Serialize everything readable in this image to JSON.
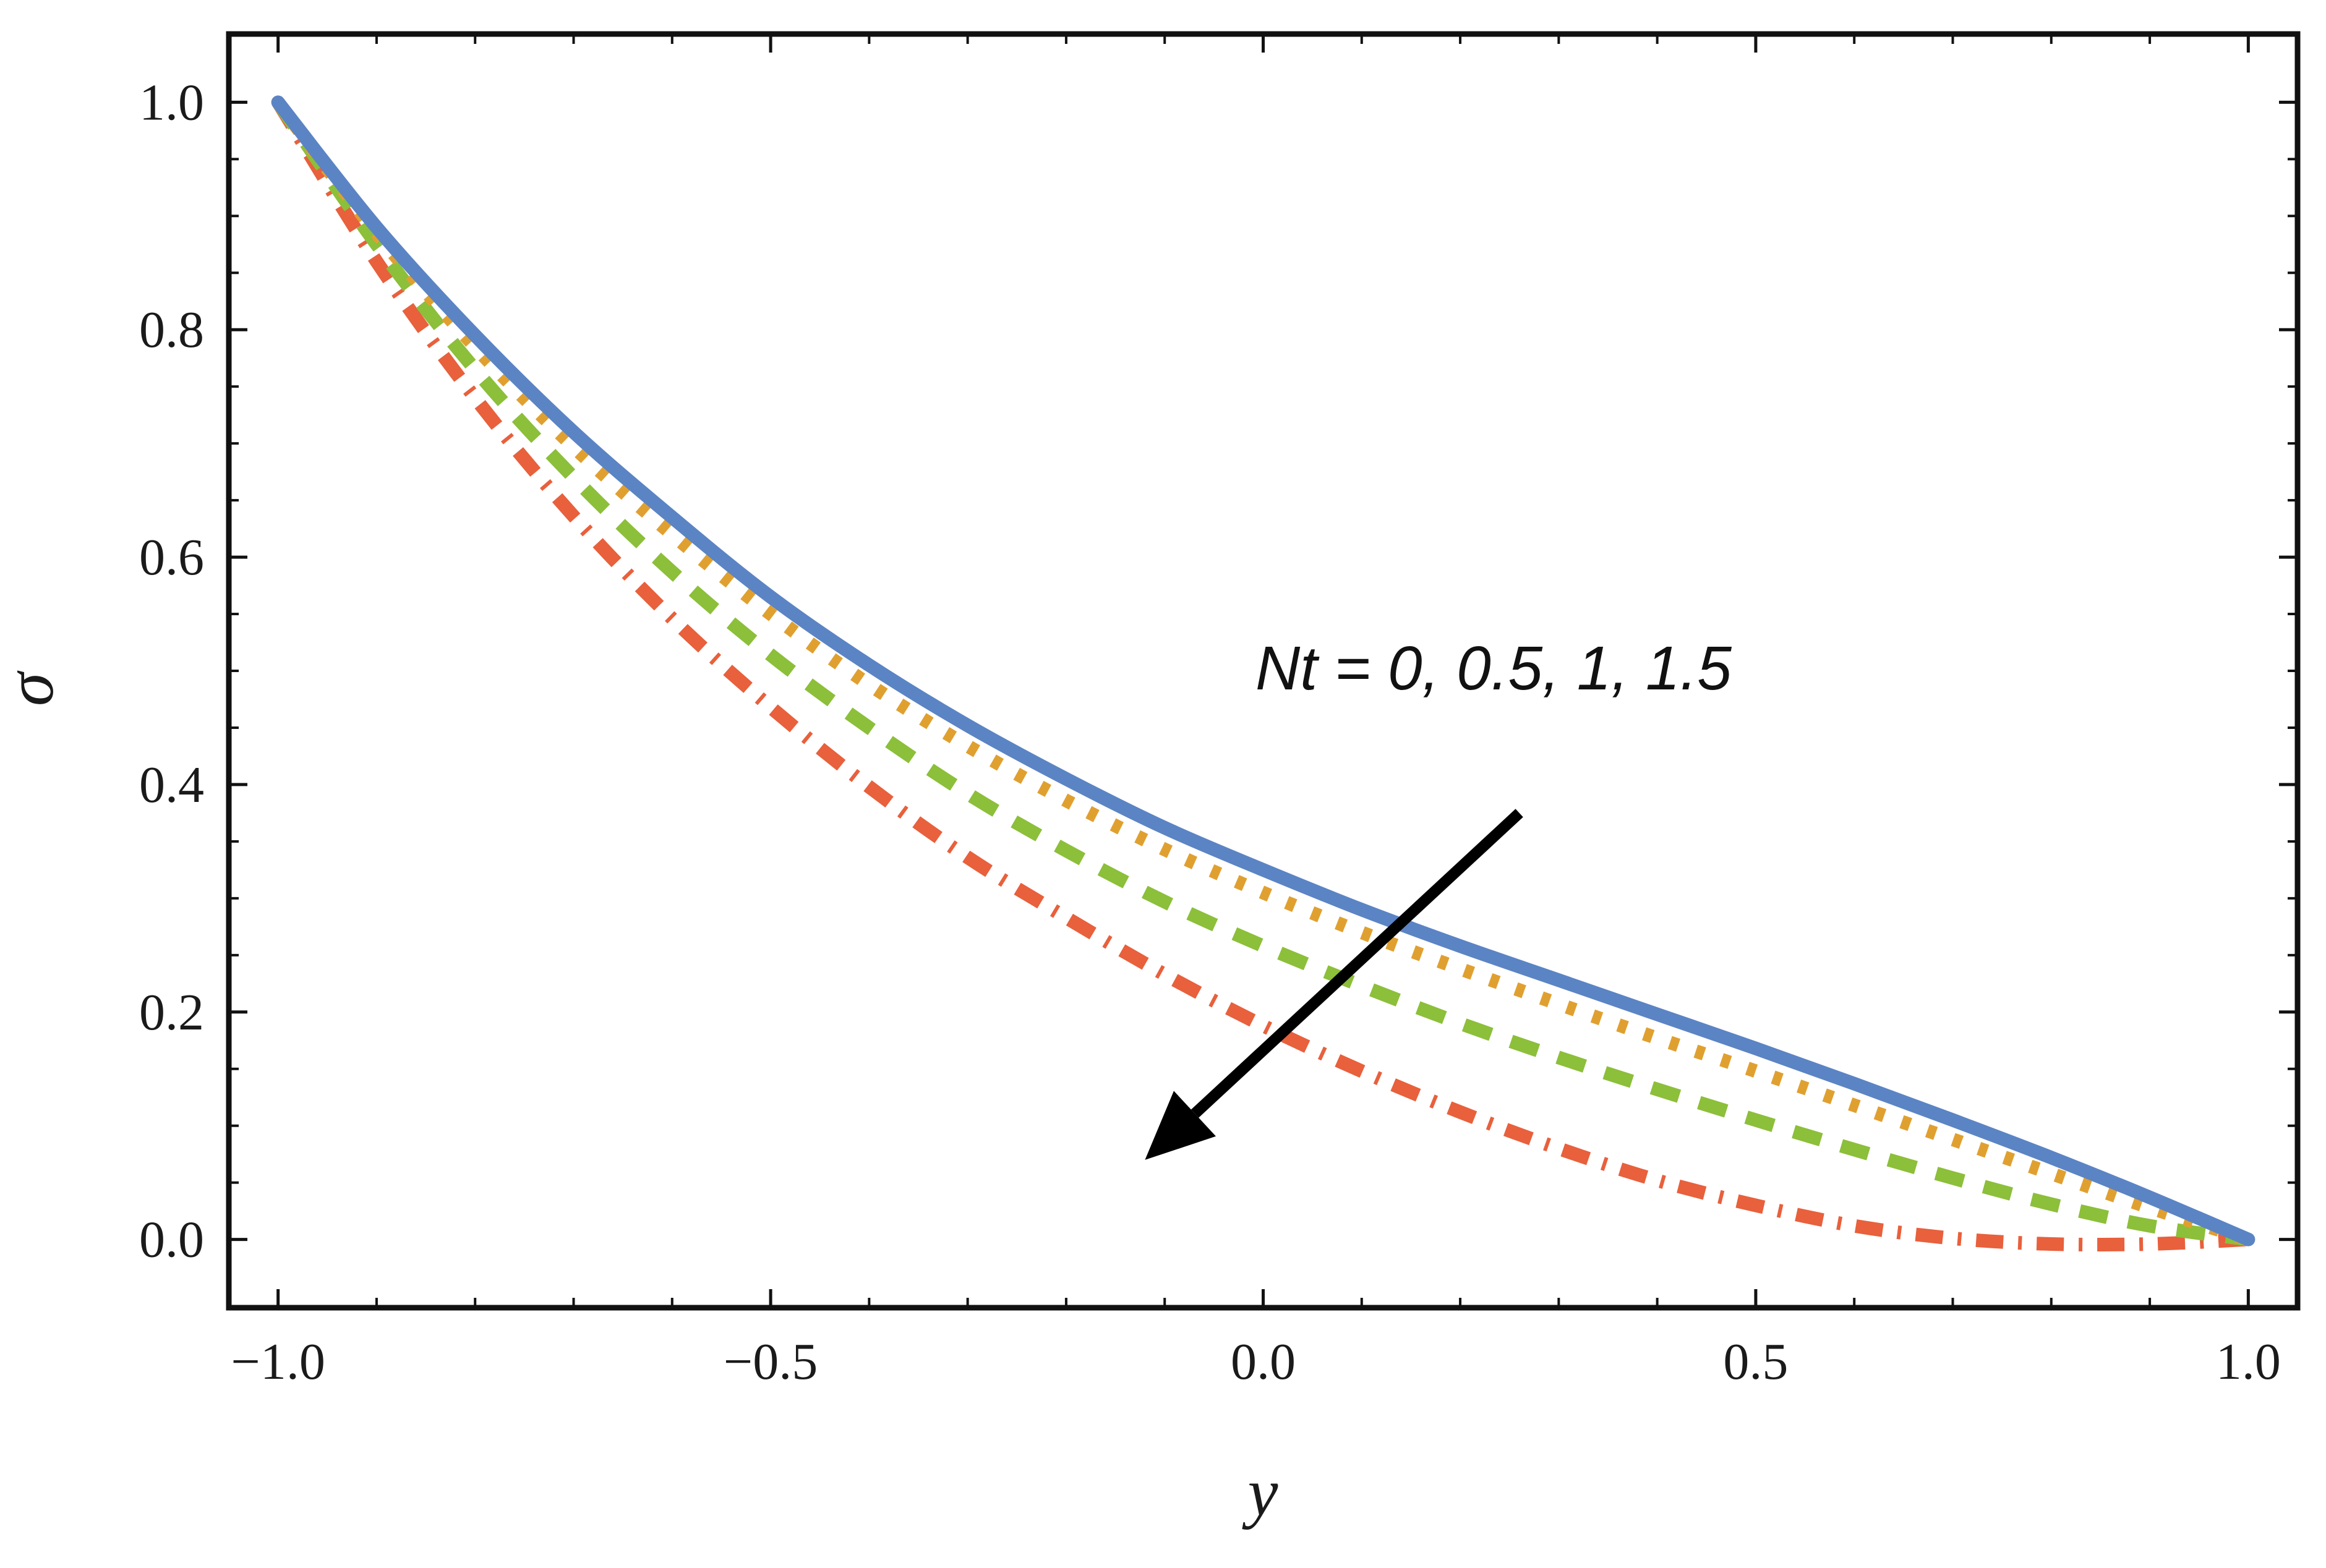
{
  "chart_data": {
    "type": "line",
    "title": "",
    "xlabel": "y",
    "ylabel": "σ",
    "xlim": [
      -1.05,
      1.05
    ],
    "ylim": [
      -0.06,
      1.06
    ],
    "x_ticks": [
      -1.0,
      -0.5,
      0.0,
      0.5,
      1.0
    ],
    "x_tick_labels": [
      "−1.0",
      "−0.5",
      "0.0",
      "0.5",
      "1.0"
    ],
    "y_ticks": [
      0.0,
      0.2,
      0.4,
      0.6,
      0.8,
      1.0
    ],
    "y_tick_labels": [
      "0.0",
      "0.2",
      "0.4",
      "0.6",
      "0.8",
      "1.0"
    ],
    "grid": false,
    "annotation": {
      "text": "Nt = 0, 0.5, 1, 1.5",
      "arrow_from": [
        0.26,
        0.375
      ],
      "arrow_to": [
        -0.12,
        0.07
      ]
    },
    "series": [
      {
        "name": "Nt = 0",
        "style": "solid",
        "color": "#5b84c4",
        "x": [
          -1.0,
          -0.9,
          -0.8,
          -0.7,
          -0.6,
          -0.5,
          -0.4,
          -0.3,
          -0.2,
          -0.1,
          0.0,
          0.1,
          0.2,
          0.3,
          0.4,
          0.5,
          0.6,
          0.7,
          0.8,
          0.9,
          1.0
        ],
        "y": [
          1.0,
          0.89,
          0.795,
          0.71,
          0.635,
          0.565,
          0.505,
          0.452,
          0.405,
          0.362,
          0.325,
          0.29,
          0.258,
          0.228,
          0.198,
          0.168,
          0.137,
          0.105,
          0.072,
          0.037,
          0.0
        ]
      },
      {
        "name": "Nt = 0.5",
        "style": "dotted",
        "color": "#e0a030",
        "x": [
          -1.0,
          -0.9,
          -0.8,
          -0.7,
          -0.6,
          -0.5,
          -0.4,
          -0.3,
          -0.2,
          -0.1,
          0.0,
          0.1,
          0.2,
          0.3,
          0.4,
          0.5,
          0.6,
          0.7,
          0.8,
          0.9,
          1.0
        ],
        "y": [
          1.0,
          0.885,
          0.785,
          0.697,
          0.62,
          0.55,
          0.488,
          0.434,
          0.386,
          0.343,
          0.305,
          0.27,
          0.238,
          0.207,
          0.177,
          0.148,
          0.118,
          0.088,
          0.058,
          0.028,
          0.0
        ]
      },
      {
        "name": "Nt = 1",
        "style": "dashed",
        "color": "#8cbf3a",
        "x": [
          -1.0,
          -0.9,
          -0.8,
          -0.7,
          -0.6,
          -0.5,
          -0.4,
          -0.3,
          -0.2,
          -0.1,
          0.0,
          0.1,
          0.2,
          0.3,
          0.4,
          0.5,
          0.6,
          0.7,
          0.8,
          0.9,
          1.0
        ],
        "y": [
          1.0,
          0.875,
          0.765,
          0.67,
          0.587,
          0.514,
          0.45,
          0.392,
          0.342,
          0.297,
          0.258,
          0.223,
          0.19,
          0.16,
          0.132,
          0.105,
          0.079,
          0.054,
          0.031,
          0.012,
          0.0
        ]
      },
      {
        "name": "Nt = 1.5",
        "style": "dash-dot",
        "color": "#e8603c",
        "x": [
          -1.0,
          -0.9,
          -0.8,
          -0.7,
          -0.6,
          -0.5,
          -0.4,
          -0.3,
          -0.2,
          -0.1,
          0.0,
          0.1,
          0.2,
          0.3,
          0.4,
          0.5,
          0.6,
          0.7,
          0.8,
          0.9,
          1.0
        ],
        "y": [
          1.0,
          0.86,
          0.74,
          0.636,
          0.546,
          0.468,
          0.398,
          0.336,
          0.283,
          0.233,
          0.188,
          0.148,
          0.112,
          0.08,
          0.052,
          0.03,
          0.012,
          0.001,
          -0.004,
          -0.004,
          0.0
        ]
      }
    ]
  }
}
